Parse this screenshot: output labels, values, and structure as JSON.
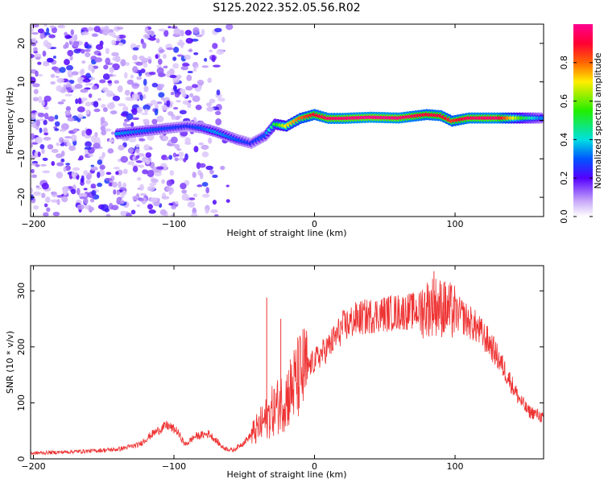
{
  "figure": {
    "title": "S125.2022.352.05.56.R02"
  },
  "chart_data": [
    {
      "type": "heatmap",
      "xlabel": "Height of straight line (km)",
      "ylabel": "Frequency (Hz)",
      "xlim": [
        -202,
        163
      ],
      "ylim": [
        -25,
        25
      ],
      "xticks": [
        -200,
        -100,
        0,
        100
      ],
      "yticks": [
        -20,
        -10,
        0,
        10,
        20
      ],
      "colorbar": {
        "label": "Normalized spectral amplitude",
        "range": [
          0,
          1
        ],
        "ticks": [
          0.0,
          0.2,
          0.4,
          0.6,
          0.8
        ]
      },
      "noise_region_km": [
        -202,
        -60
      ],
      "signal_trace": [
        {
          "x": -140,
          "y": -3.5,
          "amp": 0.35
        },
        {
          "x": -90,
          "y": -1.5,
          "amp": 0.25
        },
        {
          "x": -80,
          "y": -2,
          "amp": 0.3
        },
        {
          "x": -70,
          "y": -3,
          "amp": 0.35
        },
        {
          "x": -55,
          "y": -5,
          "amp": 0.3
        },
        {
          "x": -45,
          "y": -6,
          "amp": 0.25
        },
        {
          "x": -35,
          "y": -4,
          "amp": 0.3
        },
        {
          "x": -28,
          "y": -1,
          "amp": 0.5
        },
        {
          "x": -20,
          "y": -1.5,
          "amp": 0.7
        },
        {
          "x": -10,
          "y": 0.5,
          "amp": 0.8
        },
        {
          "x": 0,
          "y": 1.5,
          "amp": 0.9
        },
        {
          "x": 10,
          "y": 0.5,
          "amp": 0.95
        },
        {
          "x": 20,
          "y": 0.5,
          "amp": 0.97
        },
        {
          "x": 40,
          "y": 0.8,
          "amp": 1.0
        },
        {
          "x": 60,
          "y": 0.6,
          "amp": 0.98
        },
        {
          "x": 80,
          "y": 1.5,
          "amp": 0.9
        },
        {
          "x": 90,
          "y": 1.2,
          "amp": 0.92
        },
        {
          "x": 98,
          "y": -0.2,
          "amp": 0.85
        },
        {
          "x": 110,
          "y": 0.6,
          "amp": 0.95
        },
        {
          "x": 130,
          "y": 0.6,
          "amp": 0.97
        },
        {
          "x": 150,
          "y": 0.6,
          "amp": 0.5
        },
        {
          "x": 163,
          "y": 0.6,
          "amp": 0.3
        }
      ]
    },
    {
      "type": "line",
      "xlabel": "Height of straight line (km)",
      "ylabel": "SNR (10 * v/v)",
      "xlim": [
        -202,
        163
      ],
      "ylim": [
        0,
        345
      ],
      "xticks": [
        -200,
        -100,
        0,
        100
      ],
      "yticks": [
        0,
        100,
        200,
        300
      ],
      "color": "#ee3333",
      "envelope": [
        {
          "x": -202,
          "y": 10
        },
        {
          "x": -180,
          "y": 12
        },
        {
          "x": -160,
          "y": 14
        },
        {
          "x": -140,
          "y": 17
        },
        {
          "x": -125,
          "y": 25
        },
        {
          "x": -115,
          "y": 45
        },
        {
          "x": -105,
          "y": 60
        },
        {
          "x": -98,
          "y": 50
        },
        {
          "x": -92,
          "y": 25
        },
        {
          "x": -85,
          "y": 40
        },
        {
          "x": -75,
          "y": 45
        },
        {
          "x": -65,
          "y": 20
        },
        {
          "x": -58,
          "y": 15
        },
        {
          "x": -50,
          "y": 30
        },
        {
          "x": -40,
          "y": 55
        },
        {
          "x": -30,
          "y": 85
        },
        {
          "x": -20,
          "y": 110
        },
        {
          "x": -10,
          "y": 150
        },
        {
          "x": 0,
          "y": 175
        },
        {
          "x": 10,
          "y": 200
        },
        {
          "x": 20,
          "y": 235
        },
        {
          "x": 30,
          "y": 250
        },
        {
          "x": 45,
          "y": 258
        },
        {
          "x": 60,
          "y": 262
        },
        {
          "x": 75,
          "y": 265
        },
        {
          "x": 85,
          "y": 275
        },
        {
          "x": 95,
          "y": 265
        },
        {
          "x": 105,
          "y": 255
        },
        {
          "x": 115,
          "y": 235
        },
        {
          "x": 125,
          "y": 205
        },
        {
          "x": 135,
          "y": 160
        },
        {
          "x": 145,
          "y": 110
        },
        {
          "x": 152,
          "y": 85
        },
        {
          "x": 158,
          "y": 80
        },
        {
          "x": 163,
          "y": 72
        }
      ],
      "spikes": [
        {
          "x": -34,
          "y": 288
        },
        {
          "x": -24,
          "y": 250
        },
        {
          "x": 85,
          "y": 335
        },
        {
          "x": 92,
          "y": 315
        }
      ]
    }
  ]
}
